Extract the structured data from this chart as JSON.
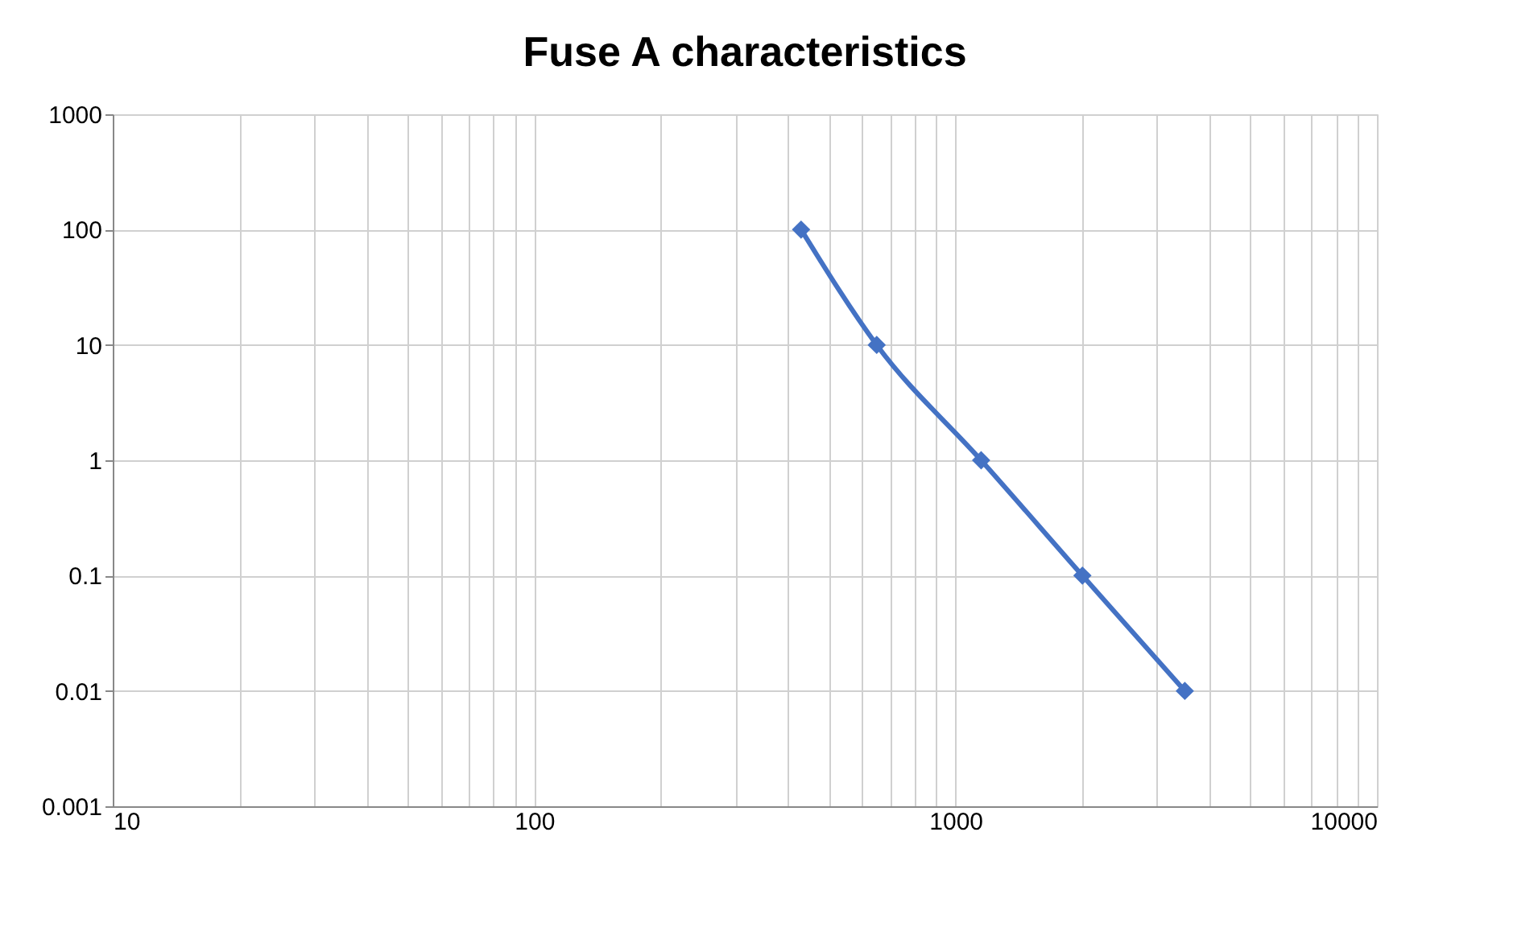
{
  "chart_data": {
    "type": "line",
    "title": "Fuse A characteristics",
    "x": [
      430,
      650,
      1150,
      2000,
      3500
    ],
    "series": [
      {
        "color": "#4472c4",
        "values": [
          100,
          10,
          1,
          0.1,
          0.01
        ]
      }
    ],
    "log": "xy",
    "xlim": [
      10,
      10000
    ],
    "ylim": [
      0.001,
      1000
    ],
    "xticks": [
      10,
      {
        "value": 20,
        "label": null
      },
      {
        "value": 30,
        "label": null
      },
      {
        "value": 40,
        "label": null
      },
      {
        "value": 50,
        "label": null
      },
      {
        "value": 60,
        "label": null
      },
      {
        "value": 70,
        "label": null
      },
      {
        "value": 80,
        "label": null
      },
      {
        "value": 90,
        "label": null
      },
      100,
      {
        "value": 200,
        "label": null
      },
      {
        "value": 300,
        "label": null
      },
      {
        "value": 400,
        "label": null
      },
      {
        "value": 500,
        "label": null
      },
      {
        "value": 600,
        "label": null
      },
      {
        "value": 700,
        "label": null
      },
      {
        "value": 800,
        "label": null
      },
      {
        "value": 900,
        "label": null
      },
      1000,
      {
        "value": 2000,
        "label": null
      },
      {
        "value": 3000,
        "label": null
      },
      {
        "value": 4000,
        "label": null
      },
      {
        "value": 5000,
        "label": null
      },
      {
        "value": 6000,
        "label": null
      },
      {
        "value": 7000,
        "label": null
      },
      {
        "value": 8000,
        "label": null
      },
      {
        "value": 9000,
        "label": null
      },
      10000
    ],
    "yticks": [
      {
        "value": 0.001,
        "label": "0.001"
      },
      {
        "value": 0.01,
        "label": "0.01"
      },
      {
        "value": 0.1,
        "label": "0.1"
      },
      1,
      10,
      100,
      1000
    ],
    "grid": true,
    "marker": "diamond",
    "line_style": "solid"
  }
}
